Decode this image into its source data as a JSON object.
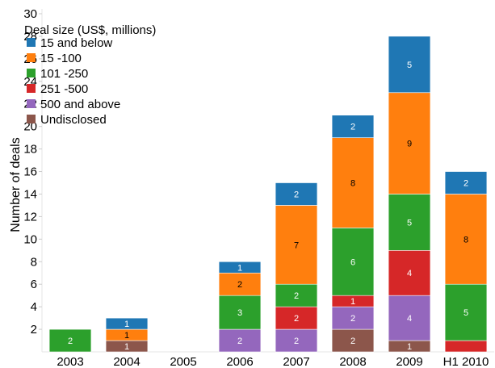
{
  "chart_data": {
    "type": "bar",
    "stacked": true,
    "title": "",
    "xlabel": "",
    "ylabel": "Number of deals",
    "ylim": [
      0,
      30
    ],
    "yticks": [
      2,
      4,
      6,
      8,
      10,
      12,
      14,
      16,
      18,
      20,
      22,
      24,
      26,
      28,
      30
    ],
    "grid": false,
    "legend_title": "Deal size (US$, millions)",
    "legend_position": "top-left",
    "categories": [
      "2003",
      "2004",
      "2005",
      "2006",
      "2007",
      "2008",
      "2009",
      "H1 2010"
    ],
    "series": [
      {
        "name": "Undisclosed",
        "color": "#8c564b",
        "label_color": "#ffffff",
        "values": [
          0,
          1,
          0,
          0,
          0,
          2,
          1,
          0
        ]
      },
      {
        "name": "500 and above",
        "color": "#9467bd",
        "label_color": "#ffffff",
        "values": [
          0,
          0,
          0,
          2,
          2,
          2,
          4,
          0
        ]
      },
      {
        "name": "251 -500",
        "color": "#d62728",
        "label_color": "#ffffff",
        "values": [
          0,
          0,
          0,
          0,
          2,
          1,
          4,
          1
        ]
      },
      {
        "name": "101 -250",
        "color": "#2ca02c",
        "label_color": "#ffffff",
        "values": [
          2,
          0,
          0,
          3,
          2,
          6,
          5,
          5
        ]
      },
      {
        "name": "15 -100",
        "color": "#ff7f0e",
        "label_color": "#000000",
        "values": [
          0,
          1,
          0,
          2,
          7,
          8,
          9,
          8
        ]
      },
      {
        "name": "15 and below",
        "color": "#1f77b4",
        "label_color": "#ffffff",
        "values": [
          0,
          1,
          0,
          1,
          2,
          2,
          5,
          2
        ]
      }
    ],
    "data_labels": [
      [
        "",
        "1",
        "",
        "",
        "",
        "2",
        "1",
        ""
      ],
      [
        "",
        "",
        "",
        "2",
        "2",
        "2",
        "4",
        ""
      ],
      [
        "",
        "",
        "",
        "",
        "2",
        "1",
        "4",
        ""
      ],
      [
        "2",
        "",
        "",
        "3",
        "2",
        "6",
        "5",
        "5"
      ],
      [
        "",
        "1",
        "",
        "2",
        "7",
        "8",
        "9",
        "8"
      ],
      [
        "",
        "1",
        "",
        "1",
        "2",
        "2",
        "5",
        "2"
      ]
    ],
    "legend_order": [
      "15 and below",
      "15 -100",
      "101 -250",
      "251 -500",
      "500 and above",
      "Undisclosed"
    ]
  }
}
